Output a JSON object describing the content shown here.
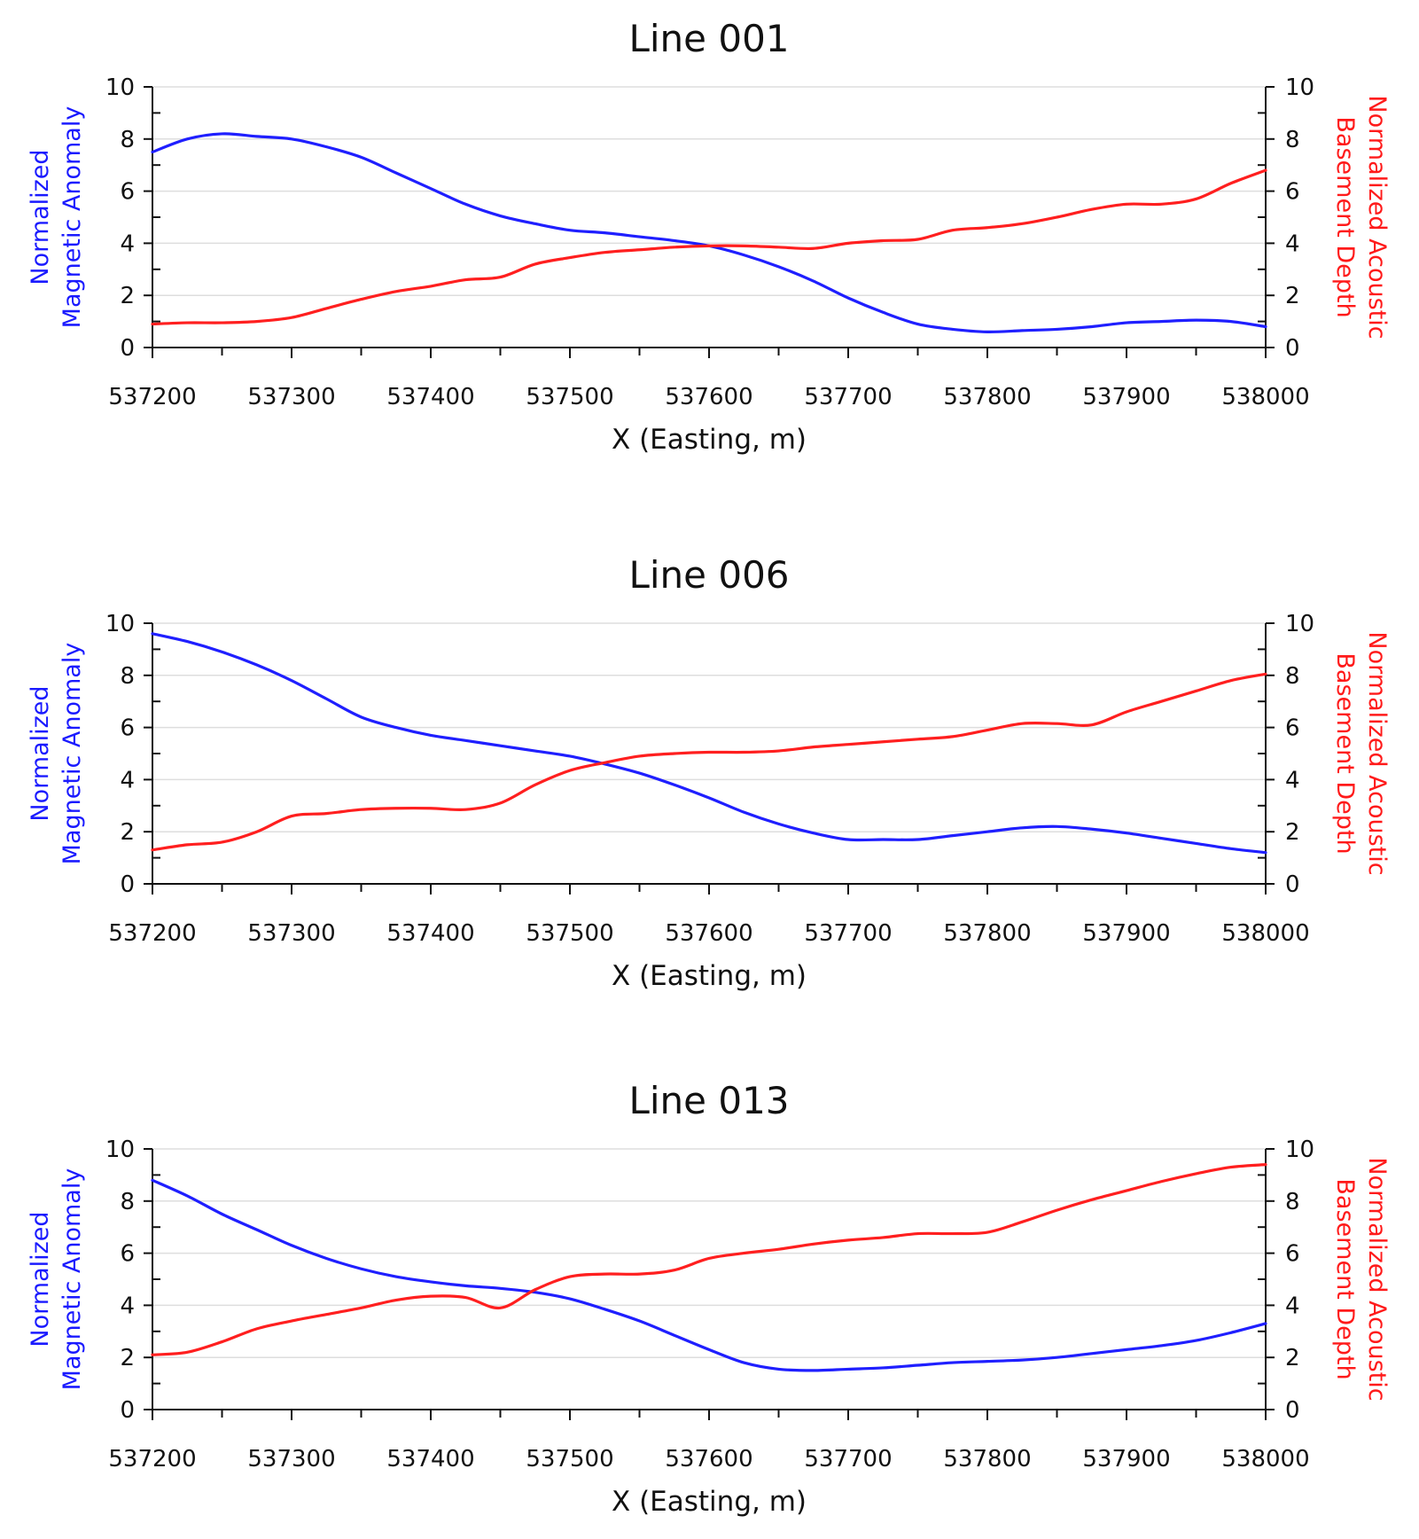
{
  "colors": {
    "magnetic": "#1f1fff",
    "acoustic": "#ff1f1f",
    "grid": "#dedede",
    "axis": "#111111"
  },
  "chart_data": [
    {
      "type": "line",
      "title": "Line 001",
      "xlabel": "X (Easting, m)",
      "ylabel_left": [
        "Normalized",
        "Magnetic Anomaly"
      ],
      "ylabel_right": [
        "Normalized Acoustic",
        "Basement Depth"
      ],
      "xlim": [
        537200,
        538000
      ],
      "ylim": [
        0,
        10
      ],
      "x_ticks": [
        "537200",
        "537300",
        "537400",
        "537500",
        "537600",
        "537700",
        "537800",
        "537900",
        "538000"
      ],
      "y_ticks": [
        "0",
        "2",
        "4",
        "6",
        "8",
        "10"
      ],
      "grid": true,
      "series": [
        {
          "key": "magnetic",
          "axis": "left",
          "x": [
            537200,
            537225,
            537250,
            537275,
            537300,
            537325,
            537350,
            537375,
            537400,
            537425,
            537450,
            537475,
            537500,
            537525,
            537550,
            537575,
            537600,
            537625,
            537650,
            537675,
            537700,
            537725,
            537750,
            537775,
            537800,
            537825,
            537850,
            537875,
            537900,
            537925,
            537950,
            537975,
            538000
          ],
          "y": [
            7.5,
            8.0,
            8.2,
            8.1,
            8.0,
            7.7,
            7.3,
            6.7,
            6.1,
            5.5,
            5.05,
            4.75,
            4.5,
            4.4,
            4.25,
            4.1,
            3.9,
            3.55,
            3.1,
            2.55,
            1.9,
            1.35,
            0.9,
            0.7,
            0.6,
            0.65,
            0.7,
            0.8,
            0.95,
            1.0,
            1.05,
            1.0,
            0.8
          ]
        },
        {
          "key": "acoustic",
          "axis": "right",
          "x": [
            537200,
            537225,
            537250,
            537275,
            537300,
            537325,
            537350,
            537375,
            537400,
            537425,
            537450,
            537475,
            537500,
            537525,
            537550,
            537575,
            537600,
            537625,
            537650,
            537675,
            537700,
            537725,
            537750,
            537775,
            537800,
            537825,
            537850,
            537875,
            537900,
            537925,
            537950,
            537975,
            538000
          ],
          "y": [
            0.9,
            0.95,
            0.95,
            1.0,
            1.15,
            1.5,
            1.85,
            2.15,
            2.35,
            2.6,
            2.7,
            3.2,
            3.45,
            3.65,
            3.75,
            3.85,
            3.9,
            3.9,
            3.85,
            3.8,
            4.0,
            4.1,
            4.15,
            4.5,
            4.6,
            4.75,
            5.0,
            5.3,
            5.5,
            5.5,
            5.7,
            6.3,
            6.8
          ]
        }
      ]
    },
    {
      "type": "line",
      "title": "Line 006",
      "xlabel": "X (Easting, m)",
      "ylabel_left": [
        "Normalized",
        "Magnetic Anomaly"
      ],
      "ylabel_right": [
        "Normalized Acoustic",
        "Basement Depth"
      ],
      "xlim": [
        537200,
        538000
      ],
      "ylim": [
        0,
        10
      ],
      "x_ticks": [
        "537200",
        "537300",
        "537400",
        "537500",
        "537600",
        "537700",
        "537800",
        "537900",
        "538000"
      ],
      "y_ticks": [
        "0",
        "2",
        "4",
        "6",
        "8",
        "10"
      ],
      "grid": true,
      "series": [
        {
          "key": "magnetic",
          "axis": "left",
          "x": [
            537200,
            537225,
            537250,
            537275,
            537300,
            537325,
            537350,
            537375,
            537400,
            537425,
            537450,
            537475,
            537500,
            537525,
            537550,
            537575,
            537600,
            537625,
            537650,
            537675,
            537700,
            537725,
            537750,
            537775,
            537800,
            537825,
            537850,
            537875,
            537900,
            537925,
            537950,
            537975,
            538000
          ],
          "y": [
            9.6,
            9.3,
            8.9,
            8.4,
            7.8,
            7.1,
            6.4,
            6.0,
            5.7,
            5.5,
            5.3,
            5.1,
            4.9,
            4.6,
            4.25,
            3.8,
            3.3,
            2.75,
            2.3,
            1.95,
            1.7,
            1.7,
            1.7,
            1.85,
            2.0,
            2.15,
            2.2,
            2.1,
            1.95,
            1.75,
            1.55,
            1.35,
            1.2
          ]
        },
        {
          "key": "acoustic",
          "axis": "right",
          "x": [
            537200,
            537225,
            537250,
            537275,
            537300,
            537325,
            537350,
            537375,
            537400,
            537425,
            537450,
            537475,
            537500,
            537525,
            537550,
            537575,
            537600,
            537625,
            537650,
            537675,
            537700,
            537725,
            537750,
            537775,
            537800,
            537825,
            537850,
            537875,
            537900,
            537925,
            537950,
            537975,
            538000
          ],
          "y": [
            1.3,
            1.5,
            1.6,
            2.0,
            2.6,
            2.7,
            2.85,
            2.9,
            2.9,
            2.85,
            3.1,
            3.8,
            4.35,
            4.65,
            4.9,
            5.0,
            5.05,
            5.05,
            5.1,
            5.25,
            5.35,
            5.45,
            5.55,
            5.65,
            5.9,
            6.15,
            6.15,
            6.1,
            6.6,
            7.0,
            7.4,
            7.8,
            8.05
          ]
        }
      ]
    },
    {
      "type": "line",
      "title": "Line 013",
      "xlabel": "X (Easting, m)",
      "ylabel_left": [
        "Normalized",
        "Magnetic Anomaly"
      ],
      "ylabel_right": [
        "Normalized Acoustic",
        "Basement Depth"
      ],
      "xlim": [
        537200,
        538000
      ],
      "ylim": [
        0,
        10
      ],
      "x_ticks": [
        "537200",
        "537300",
        "537400",
        "537500",
        "537600",
        "537700",
        "537800",
        "537900",
        "538000"
      ],
      "y_ticks": [
        "0",
        "2",
        "4",
        "6",
        "8",
        "10"
      ],
      "grid": true,
      "series": [
        {
          "key": "magnetic",
          "axis": "left",
          "x": [
            537200,
            537225,
            537250,
            537275,
            537300,
            537325,
            537350,
            537375,
            537400,
            537425,
            537450,
            537475,
            537500,
            537525,
            537550,
            537575,
            537600,
            537625,
            537650,
            537675,
            537700,
            537725,
            537750,
            537775,
            537800,
            537825,
            537850,
            537875,
            537900,
            537925,
            537950,
            537975,
            538000
          ],
          "y": [
            8.8,
            8.2,
            7.5,
            6.9,
            6.3,
            5.8,
            5.4,
            5.1,
            4.9,
            4.75,
            4.65,
            4.5,
            4.25,
            3.85,
            3.4,
            2.85,
            2.3,
            1.8,
            1.55,
            1.5,
            1.55,
            1.6,
            1.7,
            1.8,
            1.85,
            1.9,
            2.0,
            2.15,
            2.3,
            2.45,
            2.65,
            2.95,
            3.3
          ]
        },
        {
          "key": "acoustic",
          "axis": "right",
          "x": [
            537200,
            537225,
            537250,
            537275,
            537300,
            537325,
            537350,
            537375,
            537400,
            537425,
            537450,
            537475,
            537500,
            537525,
            537550,
            537575,
            537600,
            537625,
            537650,
            537675,
            537700,
            537725,
            537750,
            537775,
            537800,
            537825,
            537850,
            537875,
            537900,
            537925,
            537950,
            537975,
            538000
          ],
          "y": [
            2.1,
            2.2,
            2.6,
            3.1,
            3.4,
            3.65,
            3.9,
            4.2,
            4.35,
            4.3,
            3.9,
            4.6,
            5.1,
            5.2,
            5.2,
            5.35,
            5.8,
            6.0,
            6.15,
            6.35,
            6.5,
            6.6,
            6.75,
            6.75,
            6.8,
            7.2,
            7.65,
            8.05,
            8.4,
            8.75,
            9.05,
            9.3,
            9.4
          ]
        }
      ]
    }
  ]
}
